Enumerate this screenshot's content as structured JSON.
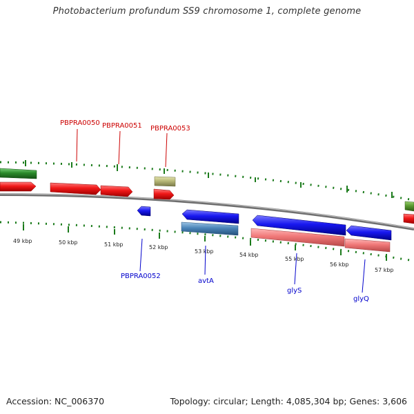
{
  "title": "Photobacterium profundum SS9 chromosome 1, complete genome",
  "footer": {
    "accession": "Accession: NC_006370",
    "topology": "Topology: circular; Length: 4,085,304 bp; Genes: 3,606"
  },
  "colors": {
    "forward_cds": "#e81010",
    "reverse_cds": "#1010e0",
    "rna": "#2a8a2a",
    "misc_gene": "#b8b878",
    "pseudo_gene": "#f07878",
    "steelblue_gene": "#4a84b8",
    "backbone": "#8c8c8c",
    "forward_label": "#cc0000",
    "reverse_label": "#0000cc",
    "gc_dot": "#1a7a1a"
  },
  "ticks": [
    {
      "label": "49 kbp"
    },
    {
      "label": "50 kbp"
    },
    {
      "label": "51 kbp"
    },
    {
      "label": "52 kbp"
    },
    {
      "label": "53 kbp"
    },
    {
      "label": "54 kbp"
    },
    {
      "label": "55 kbp"
    },
    {
      "label": "56 kbp"
    },
    {
      "label": "57 kbp"
    }
  ],
  "forward_labels": [
    {
      "text": "PBPRA0050"
    },
    {
      "text": "PBPRA0051"
    },
    {
      "text": "PBPRA0053"
    }
  ],
  "reverse_labels": [
    {
      "text": "PBPRA0052"
    },
    {
      "text": "avtA"
    },
    {
      "text": "glyS"
    },
    {
      "text": "glyQ"
    }
  ]
}
